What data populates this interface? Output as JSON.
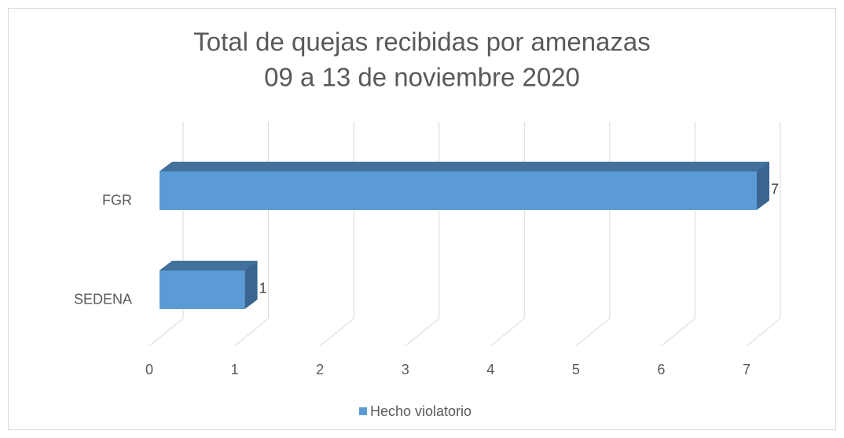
{
  "chart_data": {
    "type": "bar",
    "orientation": "horizontal",
    "three_d": true,
    "title": "Total de quejas recibidas por amenazas",
    "subtitle": "09 a 13 de noviembre 2020",
    "categories": [
      "FGR",
      "SEDENA"
    ],
    "series": [
      {
        "name": "Hecho violatorio",
        "color": "#5b9bd5",
        "values": [
          7,
          1
        ]
      }
    ],
    "xlim": [
      0,
      7
    ],
    "xticks": [
      0,
      1,
      2,
      3,
      4,
      5,
      6,
      7
    ],
    "grid": true,
    "legend": "bottom"
  }
}
